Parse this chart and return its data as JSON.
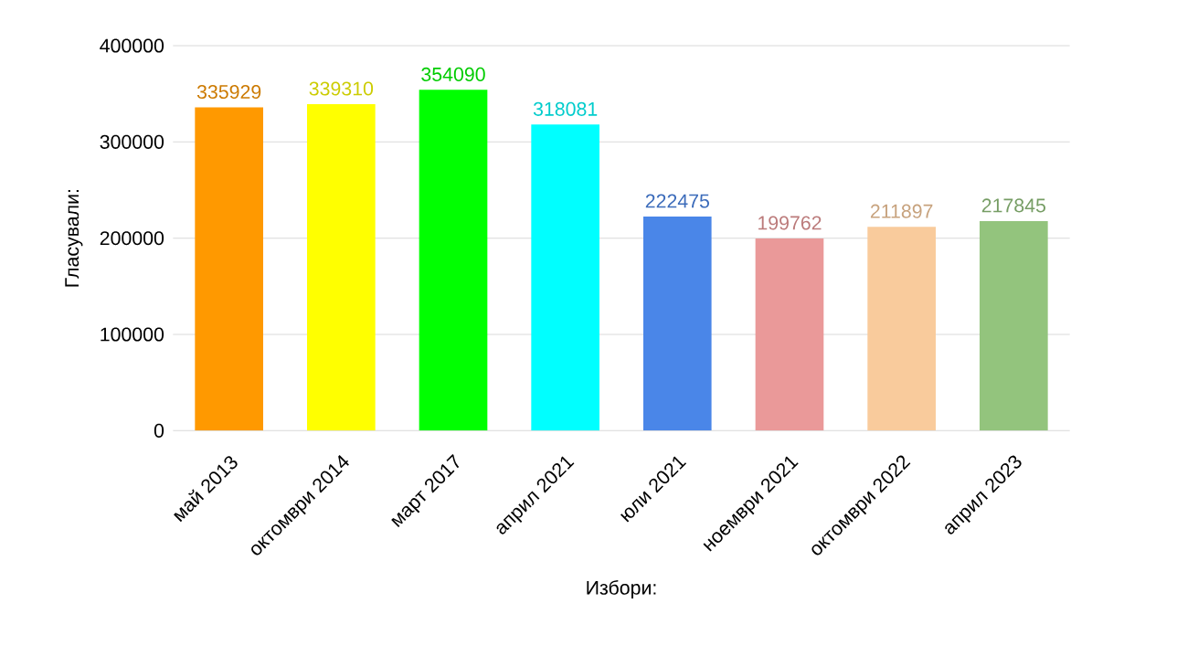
{
  "chart_data": {
    "type": "bar",
    "xlabel": "Избори:",
    "ylabel": "Гласували:",
    "categories": [
      "май 2013",
      "октомври 2014",
      "март 2017",
      "април 2021",
      "юли 2021",
      "ноември 2021",
      "октомври 2022",
      "април 2023"
    ],
    "values": [
      335929,
      339310,
      354090,
      318081,
      222475,
      199762,
      211897,
      217845
    ],
    "colors": [
      "#ff9900",
      "#ffff00",
      "#00ff00",
      "#00ffff",
      "#4a86e8",
      "#ea9999",
      "#f9cb9c",
      "#93c47d"
    ],
    "ylim": [
      0,
      400000
    ],
    "yticks": [
      0,
      100000,
      200000,
      300000,
      400000
    ],
    "grid": "y",
    "data_labels": true
  }
}
